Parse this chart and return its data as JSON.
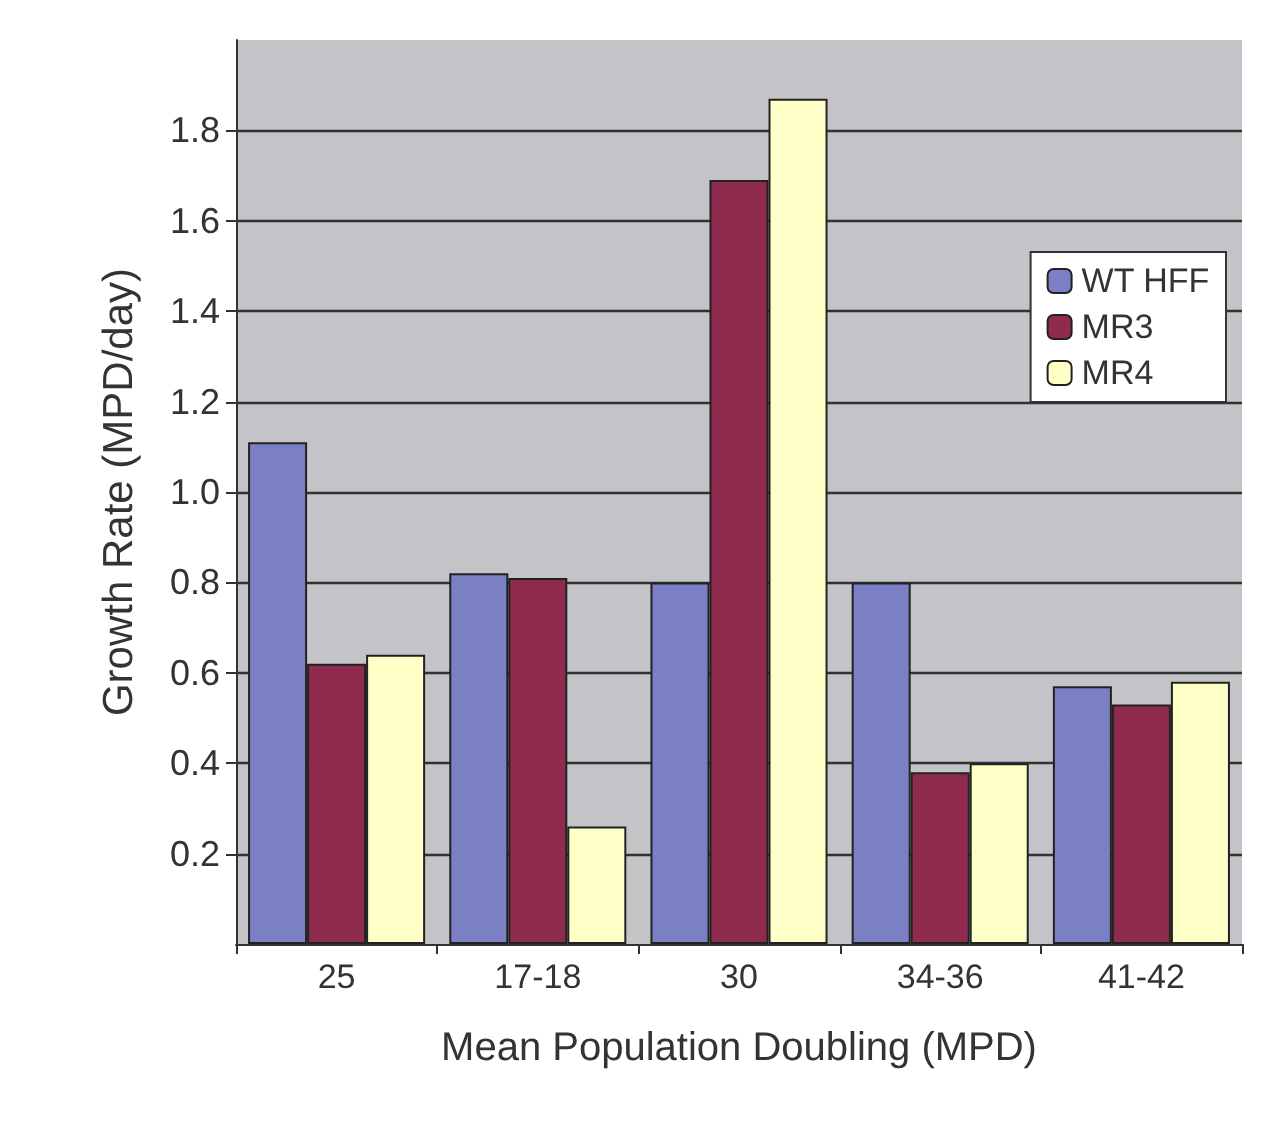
{
  "chart_data": {
    "type": "bar",
    "xlabel": "Mean Population Doubling (MPD)",
    "ylabel": "Growth Rate (MPD/day)",
    "categories": [
      "25",
      "17-18",
      "30",
      "34-36",
      "41-42"
    ],
    "series": [
      {
        "name": "WT HFF",
        "color": "#7b7fc4",
        "values": [
          1.11,
          0.82,
          0.8,
          0.8,
          0.57
        ]
      },
      {
        "name": "MR3",
        "color": "#8e2b4f",
        "values": [
          0.62,
          0.81,
          1.69,
          0.38,
          0.53
        ]
      },
      {
        "name": "MR4",
        "color": "#ffffc8",
        "values": [
          0.64,
          0.26,
          1.87,
          0.4,
          0.58
        ]
      }
    ],
    "ylim": [
      0,
      2
    ],
    "yticks": [
      0.2,
      0.4,
      0.6,
      0.8,
      {
        "value": 1,
        "label": "1.0"
      },
      1.2,
      1.4,
      1.6,
      1.8
    ],
    "grid": "y",
    "legend": "top right"
  }
}
